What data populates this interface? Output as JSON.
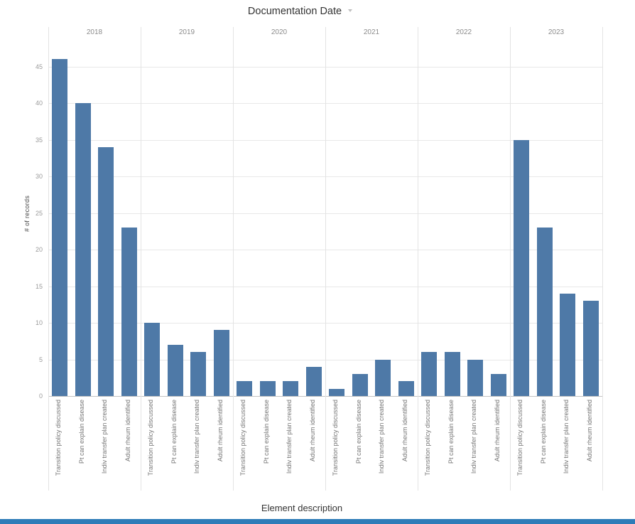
{
  "colors": {
    "bar": "#4e79a7",
    "gridline": "#e8e8e8",
    "axis_line": "#c3c3c3",
    "divider": "#e3e3e3",
    "tick_label": "#9b9b9b",
    "year_label": "#8c8c8c",
    "category_label": "#767676",
    "title_text": "#333333",
    "bottom_strip": "#2e7cb8"
  },
  "chart_data": {
    "type": "bar",
    "title": "Documentation Date",
    "xlabel": "Element description",
    "ylabel": "# of records",
    "ylim": [
      0,
      48.5
    ],
    "y_ticks": [
      0,
      5,
      10,
      15,
      20,
      25,
      30,
      35,
      40,
      45
    ],
    "grid": true,
    "legend": "none",
    "categories": [
      "Transition policy discussed",
      "Pt can explain disease",
      "Indiv transfer plan created",
      "Adult rheum identified"
    ],
    "groups": [
      {
        "year": "2018",
        "values": [
          46,
          40,
          34,
          23
        ]
      },
      {
        "year": "2019",
        "values": [
          10,
          7,
          6,
          9
        ]
      },
      {
        "year": "2020",
        "values": [
          2,
          2,
          2,
          4
        ]
      },
      {
        "year": "2021",
        "values": [
          1,
          3,
          5,
          2
        ]
      },
      {
        "year": "2022",
        "values": [
          6,
          6,
          5,
          3
        ]
      },
      {
        "year": "2023",
        "values": [
          35,
          23,
          14,
          13
        ]
      }
    ]
  }
}
